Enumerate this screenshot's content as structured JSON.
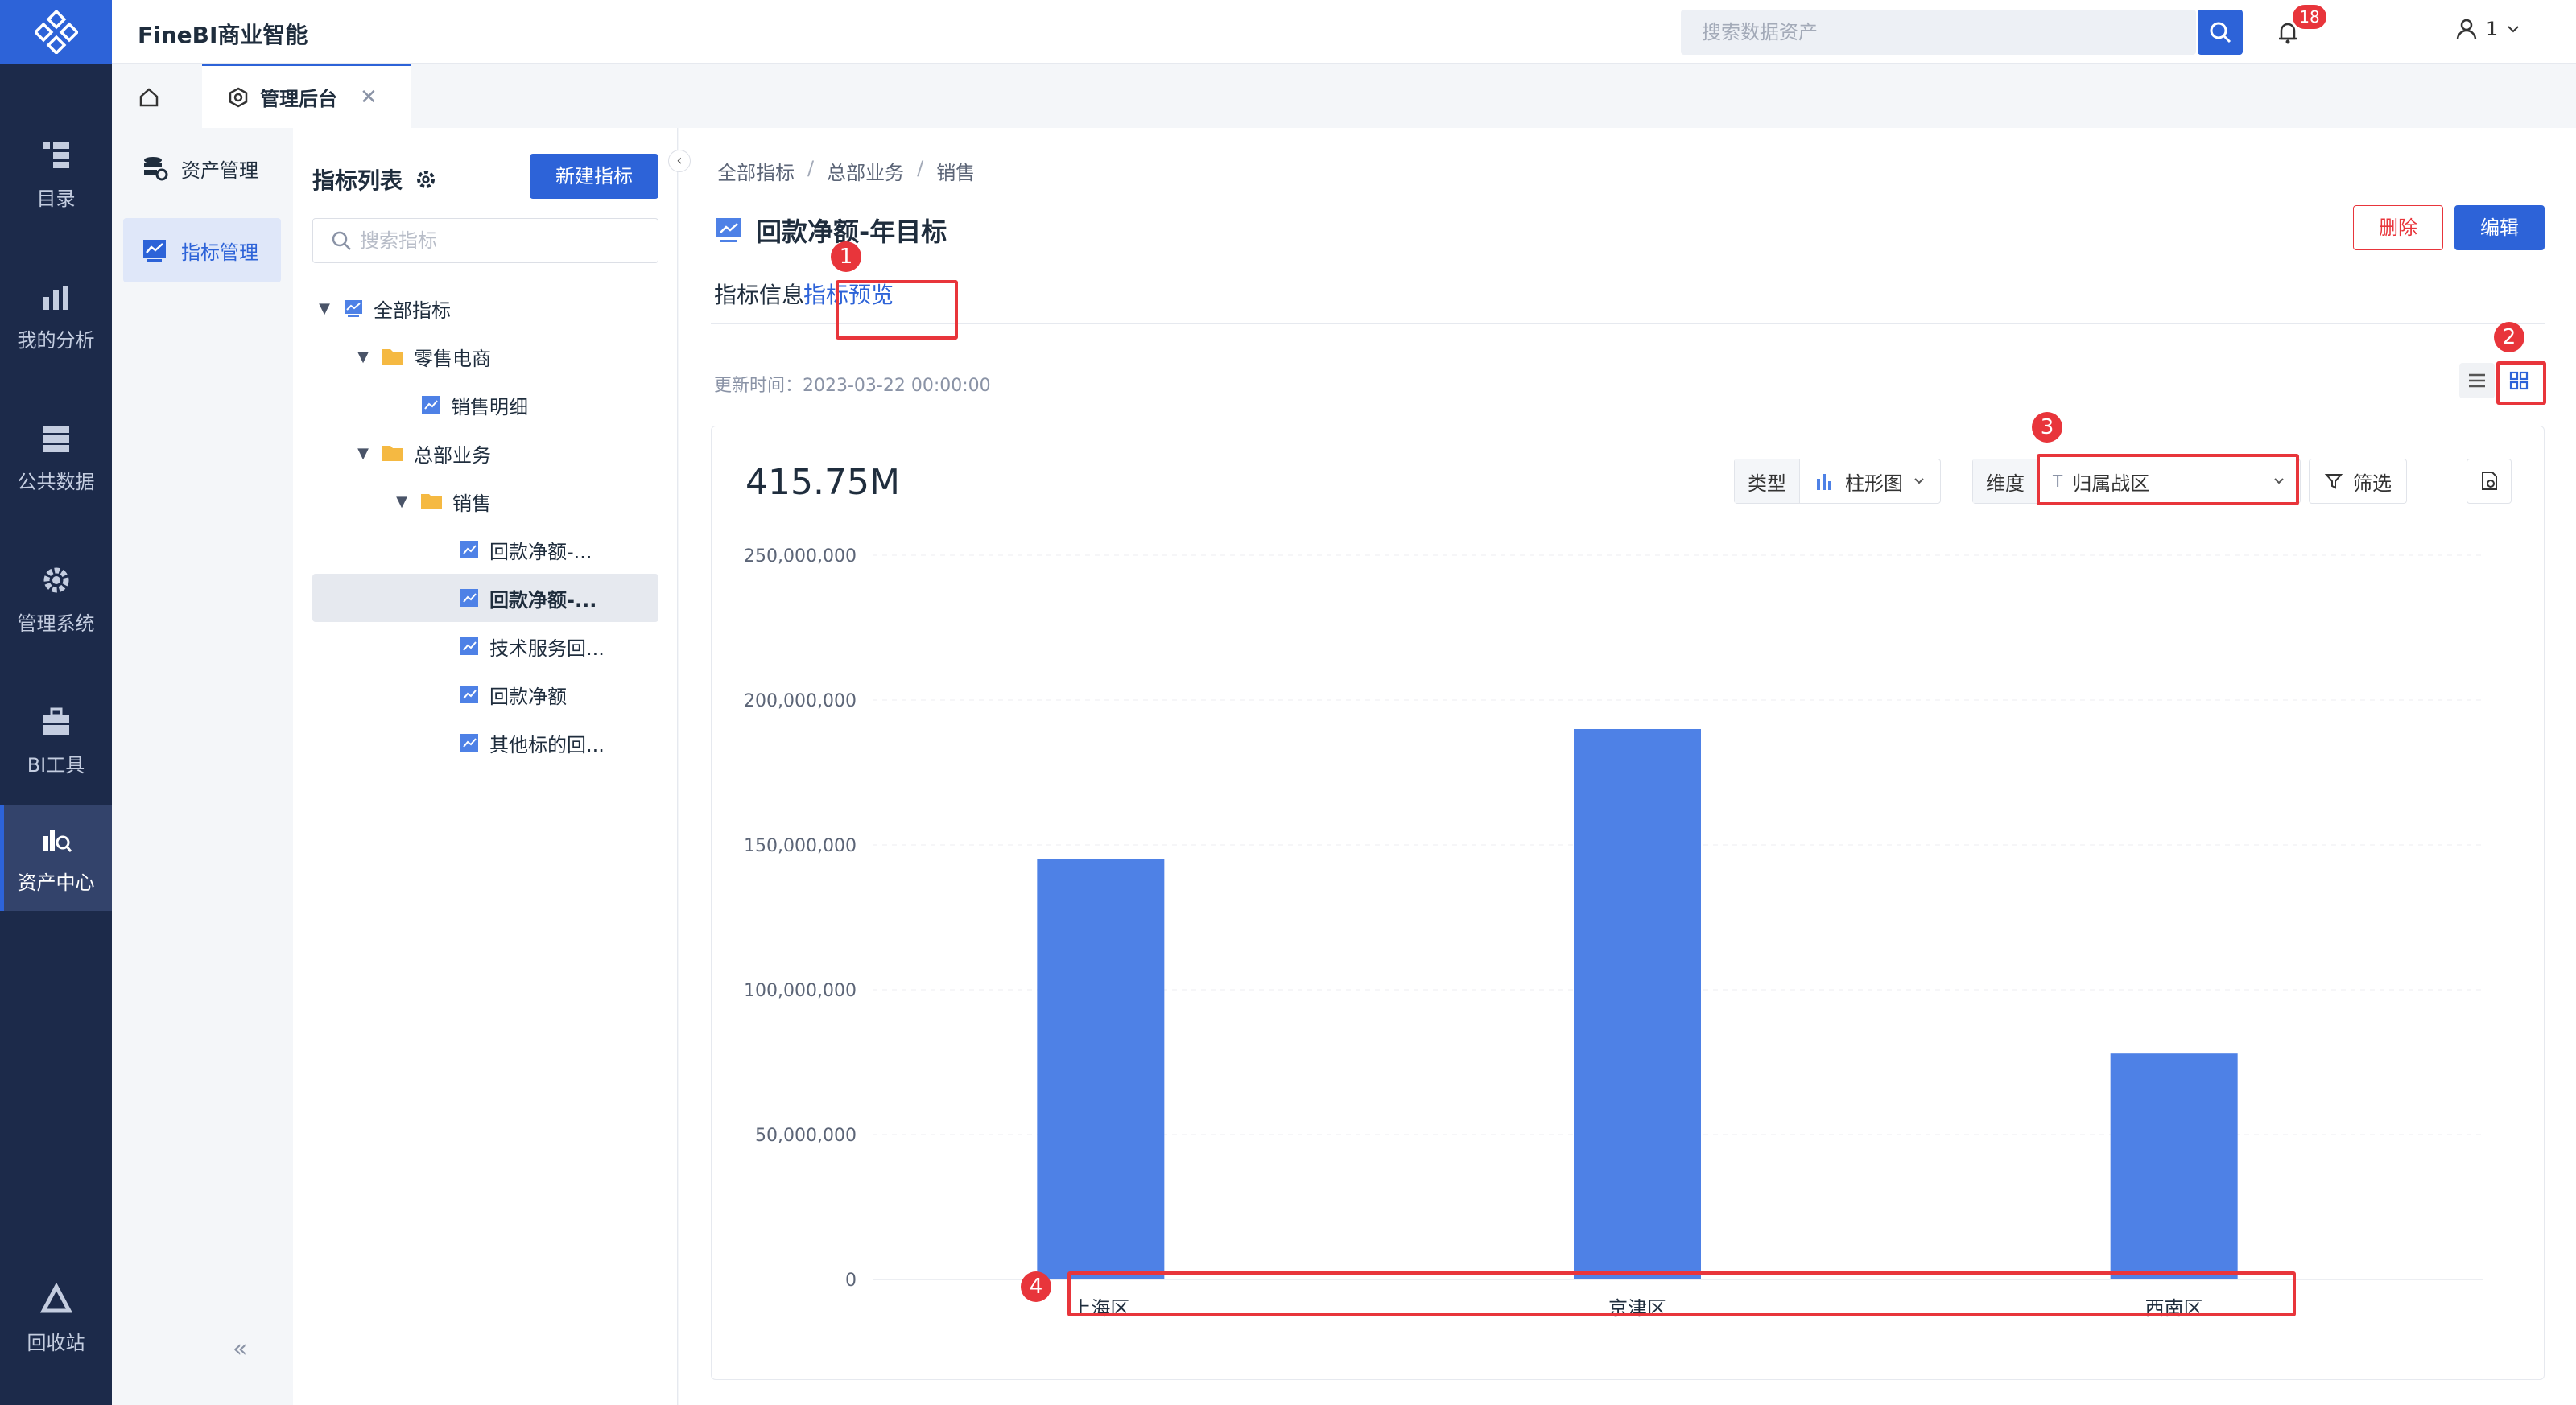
{
  "app": {
    "title": "FineBI商业智能"
  },
  "search": {
    "placeholder": "搜索数据资产"
  },
  "notifications": {
    "count": "18"
  },
  "user": {
    "name": "1"
  },
  "leftnav": {
    "items": [
      {
        "label": "目录",
        "icon": "catalog-icon"
      },
      {
        "label": "我的分析",
        "icon": "analysis-icon"
      },
      {
        "label": "公共数据",
        "icon": "public-data-icon"
      },
      {
        "label": "管理系统",
        "icon": "gear-icon"
      },
      {
        "label": "BI工具",
        "icon": "toolbox-icon"
      },
      {
        "label": "资产中心",
        "icon": "asset-center-icon"
      },
      {
        "label": "回收站",
        "icon": "recycle-icon"
      }
    ]
  },
  "tabbar": {
    "admin_label": "管理后台"
  },
  "subside": {
    "items": [
      {
        "label": "资产管理"
      },
      {
        "label": "指标管理"
      }
    ]
  },
  "tree": {
    "title": "指标列表",
    "new_button": "新建指标",
    "search_placeholder": "搜索指标",
    "nodes": [
      {
        "label": "全部指标"
      },
      {
        "label": "零售电商"
      },
      {
        "label": "销售明细"
      },
      {
        "label": "总部业务"
      },
      {
        "label": "销售"
      },
      {
        "label": "回款净额-..."
      },
      {
        "label": "回款净额-..."
      },
      {
        "label": "技术服务回..."
      },
      {
        "label": "回款净额"
      },
      {
        "label": "其他标的回..."
      }
    ]
  },
  "breadcrumb": {
    "items": [
      "全部指标",
      "总部业务",
      "销售"
    ]
  },
  "metric": {
    "title": "回款净额-年目标",
    "update_time": "更新时间：2023-03-22 00:00:00",
    "total": "415.75M"
  },
  "actions": {
    "delete": "删除",
    "edit": "编辑"
  },
  "tabs": {
    "info": "指标信息",
    "preview": "指标预览"
  },
  "controls": {
    "type_label": "类型",
    "type_value": "柱形图",
    "dim_label": "维度",
    "dim_value": "归属战区",
    "filter_label": "筛选"
  },
  "annotations": [
    "1",
    "2",
    "3",
    "4"
  ],
  "colors": {
    "accent": "#2d63d8",
    "bar": "#4e81e6",
    "annotation": "#e8353b",
    "nav_bg": "#1c2a4a"
  },
  "chart_data": {
    "type": "bar",
    "categories": [
      "上海区",
      "京津区",
      "西南区"
    ],
    "values": [
      145000000,
      190000000,
      78000000
    ],
    "ylim": [
      0,
      250000000
    ],
    "yticks": [
      0,
      50000000,
      100000000,
      150000000,
      200000000,
      250000000
    ],
    "ytick_labels": [
      "0",
      "50,000,000",
      "100,000,000",
      "150,000,000",
      "200,000,000",
      "250,000,000"
    ],
    "grid": true,
    "color": "#4e81e6"
  }
}
